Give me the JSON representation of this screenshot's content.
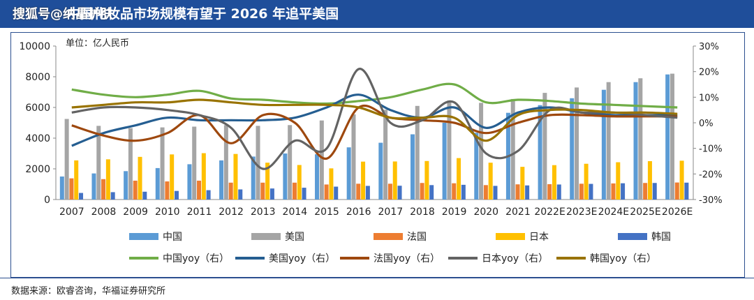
{
  "header": {
    "title": "中国化妆品市场规模有望于 2026 年追平美国",
    "watermark": "搜狐号@纳晶护肤"
  },
  "footer": {
    "source": "数据来源：欧睿咨询，华福证券研究所"
  },
  "colors": {
    "header_bg": "#1f4e9a",
    "cn_bar": "#5b9bd5",
    "us_bar": "#a5a5a5",
    "fr_bar": "#ed7d31",
    "jp_bar": "#ffc000",
    "kr_bar": "#4472c4",
    "cn_yoy": "#70ad47",
    "us_yoy": "#255e91",
    "fr_yoy": "#9e480e",
    "jp_yoy": "#636363",
    "kr_yoy": "#997300"
  },
  "chart_data": {
    "type": "bar",
    "unit_label": "单位：亿人民币",
    "categories": [
      "2007",
      "2008",
      "2009",
      "2010",
      "2011",
      "2012",
      "2013",
      "2014",
      "2015",
      "2016",
      "2017",
      "2018",
      "2019",
      "2020",
      "2021",
      "2022E",
      "2023E",
      "2024E",
      "2025E",
      "2026E"
    ],
    "y_left": {
      "min": 0,
      "max": 10000,
      "ticks": [
        "0",
        "2000",
        "4000",
        "6000",
        "8000",
        "10000"
      ]
    },
    "y_right": {
      "min": -30,
      "max": 30,
      "ticks": [
        "-30%",
        "-20%",
        "-10%",
        "0%",
        "10%",
        "20%",
        "30%"
      ]
    },
    "bar_series": [
      {
        "name": "中国",
        "color": "#5b9bd5",
        "values": [
          1500,
          1700,
          1850,
          2050,
          2300,
          2550,
          2800,
          3000,
          2950,
          3400,
          3700,
          4250,
          5000,
          4350,
          5650,
          6150,
          6600,
          7150,
          7650,
          8150
        ]
      },
      {
        "name": "美国",
        "color": "#a5a5a5",
        "values": [
          5250,
          4800,
          4650,
          4700,
          4750,
          4850,
          4800,
          4850,
          5150,
          5550,
          5850,
          6100,
          6450,
          6300,
          6550,
          6950,
          7300,
          7650,
          7900,
          8200
        ]
      },
      {
        "name": "法国",
        "color": "#ed7d31",
        "values": [
          1380,
          1330,
          1230,
          1180,
          1230,
          1100,
          1100,
          1100,
          980,
          1030,
          1030,
          1080,
          1060,
          940,
          990,
          1000,
          1030,
          1050,
          1080,
          1110
        ]
      },
      {
        "name": "日本",
        "color": "#ffc000",
        "values": [
          2550,
          2620,
          2780,
          2940,
          3020,
          2970,
          2400,
          2250,
          2030,
          2470,
          2480,
          2510,
          2700,
          2400,
          2130,
          2240,
          2330,
          2430,
          2500,
          2530
        ]
      },
      {
        "name": "韩国",
        "color": "#4472c4",
        "values": [
          430,
          480,
          510,
          560,
          610,
          660,
          720,
          770,
          840,
          890,
          900,
          940,
          960,
          890,
          920,
          980,
          1020,
          1060,
          1080,
          1100
        ]
      }
    ],
    "line_series": [
      {
        "name": "中国yoy（右）",
        "color": "#70ad47",
        "values": [
          13,
          11,
          10,
          11,
          12.5,
          9.5,
          9,
          8,
          7.5,
          8.5,
          10,
          13,
          15,
          8,
          9,
          8.5,
          7.5,
          7,
          6.5,
          6
        ]
      },
      {
        "name": "美国yoy（右）",
        "color": "#255e91",
        "values": [
          -9,
          -4,
          -1,
          2,
          1,
          1,
          1,
          2,
          6,
          11,
          5,
          2,
          6,
          -2,
          4,
          6,
          4,
          3,
          3,
          3
        ]
      },
      {
        "name": "法国yoy（右）",
        "color": "#9e480e",
        "values": [
          -1,
          -5,
          -7,
          -4,
          3,
          -8,
          3,
          0,
          -14,
          6,
          2,
          1,
          0,
          -4,
          0,
          3,
          3,
          2.5,
          2.5,
          2.5
        ]
      },
      {
        "name": "日本yoy（右）",
        "color": "#636363",
        "values": [
          4,
          6,
          6,
          5,
          3,
          -2,
          -18,
          -7,
          -10,
          21,
          0,
          1,
          8,
          -12,
          -11,
          5,
          4,
          4,
          3,
          2
        ]
      },
      {
        "name": "韩国yoy（右）",
        "color": "#997300",
        "values": [
          6,
          7,
          8,
          8,
          9,
          8,
          7,
          7,
          7,
          6,
          2,
          2,
          2,
          -7,
          3,
          5,
          5,
          4,
          4,
          3.5
        ]
      }
    ],
    "ylabel_left": "",
    "ylabel_right": "",
    "legend_position": "bottom",
    "grid": false
  }
}
